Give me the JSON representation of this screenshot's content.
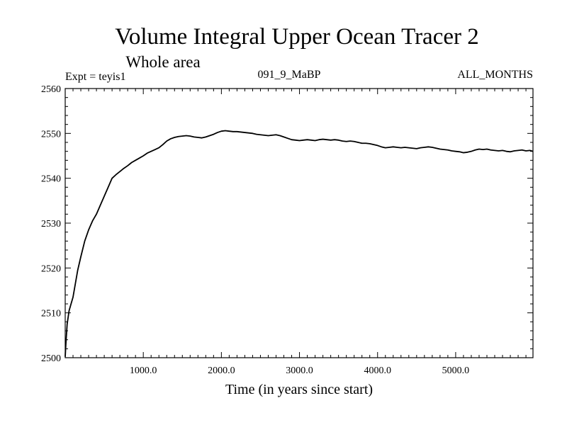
{
  "chart_data": {
    "type": "line",
    "title": "Volume Integral Upper Ocean Tracer 2",
    "subtitle": "Whole area",
    "header_left": "Expt = teyis1",
    "header_center": "091_9_MaBP",
    "header_right": "ALL_MONTHS",
    "xlabel": "Time (in years since start)",
    "ylabel": "",
    "xlim": [
      0,
      5990
    ],
    "ylim": [
      2500,
      2560
    ],
    "x_ticks": [
      1000,
      2000,
      3000,
      4000,
      5000
    ],
    "x_tick_labels": [
      "1000.0",
      "2000.0",
      "3000.0",
      "4000.0",
      "5000.0"
    ],
    "y_ticks": [
      2500,
      2510,
      2520,
      2530,
      2540,
      2550,
      2560
    ],
    "y_tick_labels": [
      "2500",
      "2510",
      "2520",
      "2530",
      "2540",
      "2550",
      "2560"
    ],
    "grid": false,
    "series": [
      {
        "color": "#000000",
        "x": [
          0,
          10,
          25,
          50,
          75,
          100,
          130,
          160,
          200,
          250,
          300,
          350,
          400,
          450,
          500,
          550,
          600,
          650,
          700,
          750,
          800,
          850,
          900,
          950,
          1000,
          1050,
          1100,
          1150,
          1200,
          1250,
          1300,
          1350,
          1400,
          1450,
          1500,
          1550,
          1600,
          1650,
          1700,
          1750,
          1800,
          1850,
          1900,
          1950,
          2000,
          2050,
          2100,
          2150,
          2200,
          2250,
          2300,
          2350,
          2400,
          2450,
          2500,
          2550,
          2600,
          2650,
          2700,
          2750,
          2800,
          2850,
          2900,
          2950,
          3000,
          3050,
          3100,
          3150,
          3200,
          3250,
          3300,
          3350,
          3400,
          3450,
          3500,
          3550,
          3600,
          3650,
          3700,
          3750,
          3800,
          3850,
          3900,
          3950,
          4000,
          4050,
          4100,
          4150,
          4200,
          4250,
          4300,
          4350,
          4400,
          4450,
          4500,
          4550,
          4600,
          4650,
          4700,
          4750,
          4800,
          4850,
          4900,
          4950,
          5000,
          5050,
          5100,
          5150,
          5200,
          5250,
          5300,
          5350,
          5400,
          5450,
          5500,
          5550,
          5600,
          5650,
          5700,
          5750,
          5800,
          5850,
          5900,
          5950,
          5990
        ],
        "y": [
          2500.2,
          2503.5,
          2507.5,
          2510.5,
          2512.0,
          2513.5,
          2516.5,
          2519.5,
          2522.5,
          2526.0,
          2528.5,
          2530.5,
          2532.0,
          2534.0,
          2536.0,
          2538.0,
          2540.0,
          2540.8,
          2541.5,
          2542.2,
          2542.8,
          2543.5,
          2544.0,
          2544.5,
          2545.0,
          2545.6,
          2546.0,
          2546.4,
          2546.8,
          2547.5,
          2548.3,
          2548.8,
          2549.1,
          2549.3,
          2549.4,
          2549.5,
          2549.4,
          2549.2,
          2549.1,
          2549.0,
          2549.2,
          2549.5,
          2549.8,
          2550.2,
          2550.5,
          2550.6,
          2550.5,
          2550.4,
          2550.4,
          2550.3,
          2550.2,
          2550.1,
          2550.0,
          2549.8,
          2549.7,
          2549.6,
          2549.5,
          2549.6,
          2549.7,
          2549.5,
          2549.2,
          2548.9,
          2548.6,
          2548.5,
          2548.4,
          2548.5,
          2548.6,
          2548.5,
          2548.4,
          2548.6,
          2548.7,
          2548.6,
          2548.5,
          2548.6,
          2548.5,
          2548.3,
          2548.2,
          2548.3,
          2548.2,
          2548.0,
          2547.8,
          2547.8,
          2547.7,
          2547.5,
          2547.3,
          2547.0,
          2546.8,
          2546.9,
          2547.0,
          2546.9,
          2546.8,
          2546.9,
          2546.8,
          2546.7,
          2546.6,
          2546.8,
          2546.9,
          2547.0,
          2546.9,
          2546.7,
          2546.5,
          2546.4,
          2546.3,
          2546.1,
          2546.0,
          2545.9,
          2545.7,
          2545.8,
          2546.0,
          2546.3,
          2546.5,
          2546.4,
          2546.5,
          2546.3,
          2546.2,
          2546.1,
          2546.2,
          2546.0,
          2545.9,
          2546.1,
          2546.2,
          2546.3,
          2546.1,
          2546.2,
          2546.0
        ]
      }
    ]
  }
}
